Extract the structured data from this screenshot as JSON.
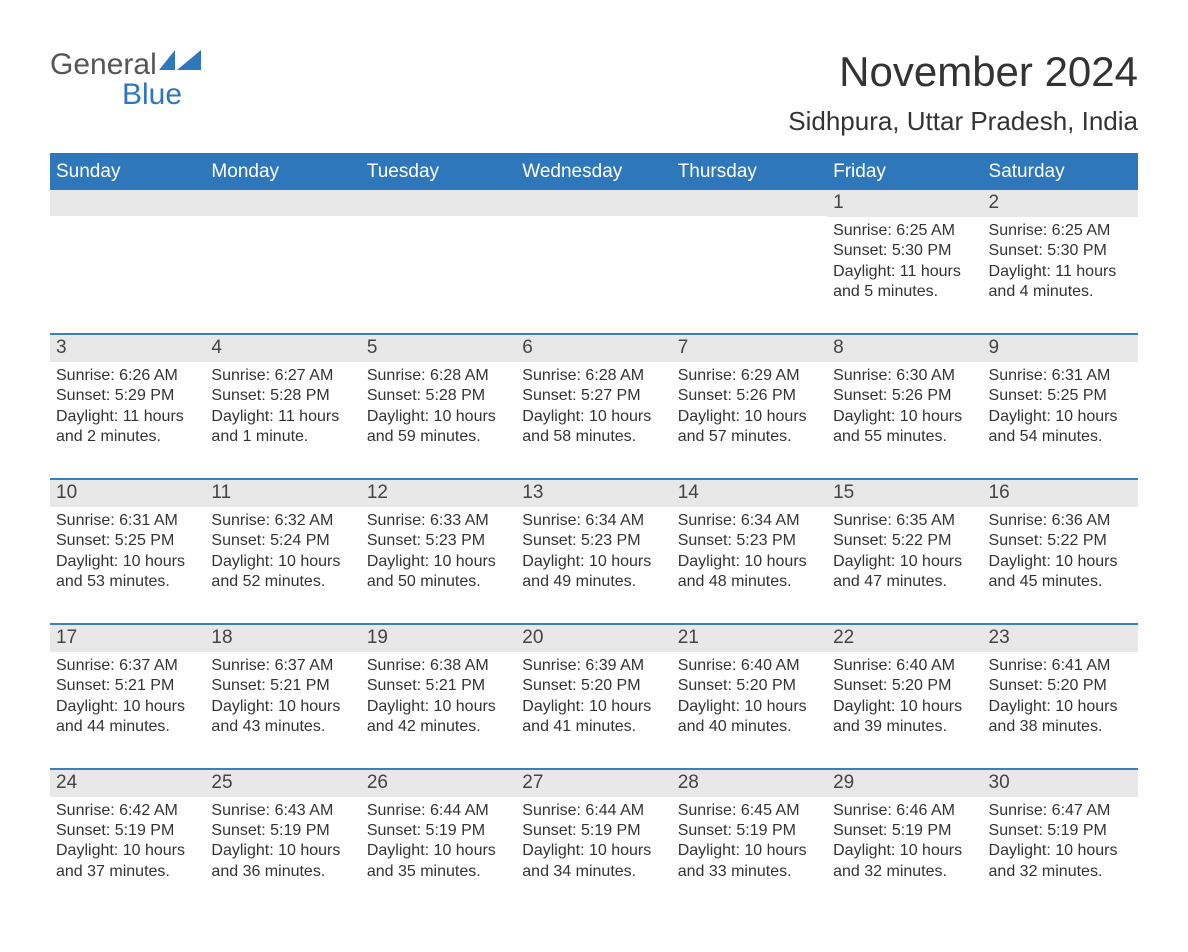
{
  "brand": {
    "name_grey": "General",
    "name_blue": "Blue",
    "logo_color": "#2f77bb"
  },
  "colors": {
    "header_bg": "#2f77bb",
    "week_divider": "#3b7dbd",
    "daynum_bg": "#e8e8e8",
    "text": "#333333",
    "header_text": "#ffffff",
    "page_bg": "#ffffff"
  },
  "typography": {
    "title_fontsize": 42,
    "location_fontsize": 26,
    "dow_fontsize": 19,
    "daynum_fontsize": 19,
    "body_fontsize": 16,
    "font_family": "Arial"
  },
  "title": "November 2024",
  "location": "Sidhpura, Uttar Pradesh, India",
  "days_of_week": [
    "Sunday",
    "Monday",
    "Tuesday",
    "Wednesday",
    "Thursday",
    "Friday",
    "Saturday"
  ],
  "labels": {
    "sunrise": "Sunrise:",
    "sunset": "Sunset:",
    "daylight": "Daylight:"
  },
  "weeks": [
    [
      {
        "day": "",
        "sunrise": "",
        "sunset": "",
        "daylight": ""
      },
      {
        "day": "",
        "sunrise": "",
        "sunset": "",
        "daylight": ""
      },
      {
        "day": "",
        "sunrise": "",
        "sunset": "",
        "daylight": ""
      },
      {
        "day": "",
        "sunrise": "",
        "sunset": "",
        "daylight": ""
      },
      {
        "day": "",
        "sunrise": "",
        "sunset": "",
        "daylight": ""
      },
      {
        "day": "1",
        "sunrise": "6:25 AM",
        "sunset": "5:30 PM",
        "daylight": "11 hours and 5 minutes."
      },
      {
        "day": "2",
        "sunrise": "6:25 AM",
        "sunset": "5:30 PM",
        "daylight": "11 hours and 4 minutes."
      }
    ],
    [
      {
        "day": "3",
        "sunrise": "6:26 AM",
        "sunset": "5:29 PM",
        "daylight": "11 hours and 2 minutes."
      },
      {
        "day": "4",
        "sunrise": "6:27 AM",
        "sunset": "5:28 PM",
        "daylight": "11 hours and 1 minute."
      },
      {
        "day": "5",
        "sunrise": "6:28 AM",
        "sunset": "5:28 PM",
        "daylight": "10 hours and 59 minutes."
      },
      {
        "day": "6",
        "sunrise": "6:28 AM",
        "sunset": "5:27 PM",
        "daylight": "10 hours and 58 minutes."
      },
      {
        "day": "7",
        "sunrise": "6:29 AM",
        "sunset": "5:26 PM",
        "daylight": "10 hours and 57 minutes."
      },
      {
        "day": "8",
        "sunrise": "6:30 AM",
        "sunset": "5:26 PM",
        "daylight": "10 hours and 55 minutes."
      },
      {
        "day": "9",
        "sunrise": "6:31 AM",
        "sunset": "5:25 PM",
        "daylight": "10 hours and 54 minutes."
      }
    ],
    [
      {
        "day": "10",
        "sunrise": "6:31 AM",
        "sunset": "5:25 PM",
        "daylight": "10 hours and 53 minutes."
      },
      {
        "day": "11",
        "sunrise": "6:32 AM",
        "sunset": "5:24 PM",
        "daylight": "10 hours and 52 minutes."
      },
      {
        "day": "12",
        "sunrise": "6:33 AM",
        "sunset": "5:23 PM",
        "daylight": "10 hours and 50 minutes."
      },
      {
        "day": "13",
        "sunrise": "6:34 AM",
        "sunset": "5:23 PM",
        "daylight": "10 hours and 49 minutes."
      },
      {
        "day": "14",
        "sunrise": "6:34 AM",
        "sunset": "5:23 PM",
        "daylight": "10 hours and 48 minutes."
      },
      {
        "day": "15",
        "sunrise": "6:35 AM",
        "sunset": "5:22 PM",
        "daylight": "10 hours and 47 minutes."
      },
      {
        "day": "16",
        "sunrise": "6:36 AM",
        "sunset": "5:22 PM",
        "daylight": "10 hours and 45 minutes."
      }
    ],
    [
      {
        "day": "17",
        "sunrise": "6:37 AM",
        "sunset": "5:21 PM",
        "daylight": "10 hours and 44 minutes."
      },
      {
        "day": "18",
        "sunrise": "6:37 AM",
        "sunset": "5:21 PM",
        "daylight": "10 hours and 43 minutes."
      },
      {
        "day": "19",
        "sunrise": "6:38 AM",
        "sunset": "5:21 PM",
        "daylight": "10 hours and 42 minutes."
      },
      {
        "day": "20",
        "sunrise": "6:39 AM",
        "sunset": "5:20 PM",
        "daylight": "10 hours and 41 minutes."
      },
      {
        "day": "21",
        "sunrise": "6:40 AM",
        "sunset": "5:20 PM",
        "daylight": "10 hours and 40 minutes."
      },
      {
        "day": "22",
        "sunrise": "6:40 AM",
        "sunset": "5:20 PM",
        "daylight": "10 hours and 39 minutes."
      },
      {
        "day": "23",
        "sunrise": "6:41 AM",
        "sunset": "5:20 PM",
        "daylight": "10 hours and 38 minutes."
      }
    ],
    [
      {
        "day": "24",
        "sunrise": "6:42 AM",
        "sunset": "5:19 PM",
        "daylight": "10 hours and 37 minutes."
      },
      {
        "day": "25",
        "sunrise": "6:43 AM",
        "sunset": "5:19 PM",
        "daylight": "10 hours and 36 minutes."
      },
      {
        "day": "26",
        "sunrise": "6:44 AM",
        "sunset": "5:19 PM",
        "daylight": "10 hours and 35 minutes."
      },
      {
        "day": "27",
        "sunrise": "6:44 AM",
        "sunset": "5:19 PM",
        "daylight": "10 hours and 34 minutes."
      },
      {
        "day": "28",
        "sunrise": "6:45 AM",
        "sunset": "5:19 PM",
        "daylight": "10 hours and 33 minutes."
      },
      {
        "day": "29",
        "sunrise": "6:46 AM",
        "sunset": "5:19 PM",
        "daylight": "10 hours and 32 minutes."
      },
      {
        "day": "30",
        "sunrise": "6:47 AM",
        "sunset": "5:19 PM",
        "daylight": "10 hours and 32 minutes."
      }
    ]
  ]
}
